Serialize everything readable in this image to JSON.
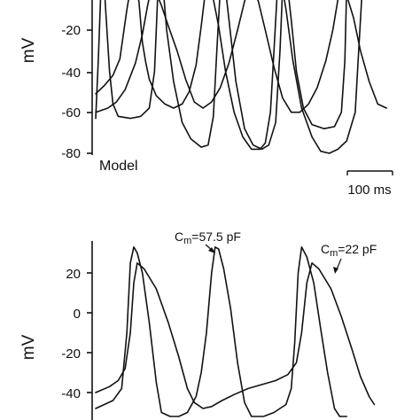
{
  "chart_data": [
    {
      "type": "line",
      "title": "",
      "panel_label": "Model",
      "xlabel": "",
      "ylabel": "mV",
      "ylim": [
        -85,
        0
      ],
      "xlim": [
        0,
        340
      ],
      "x_unit": "ms",
      "y_ticks": [
        -20,
        -40,
        -60,
        -80
      ],
      "y_tick_labels": [
        "-20",
        "-40",
        "-60",
        "-80"
      ],
      "scale_bar": {
        "value": 100,
        "unit": "ms",
        "label": "100 ms"
      },
      "series": [
        {
          "points": [
            [
              0,
              -63
            ],
            [
              3,
              -35
            ],
            [
              6,
              0
            ],
            [
              10,
              0
            ],
            [
              16,
              -40
            ],
            [
              20,
              -56
            ],
            [
              26,
              -62
            ],
            [
              40,
              -63
            ],
            [
              52,
              -62
            ],
            [
              62,
              -58
            ],
            [
              68,
              -40
            ],
            [
              72,
              0
            ],
            [
              78,
              0
            ],
            [
              82,
              -20
            ],
            [
              90,
              -45
            ],
            [
              100,
              -65
            ],
            [
              110,
              -73
            ],
            [
              122,
              -77
            ],
            [
              130,
              -76
            ],
            [
              136,
              -62
            ],
            [
              140,
              -30
            ],
            [
              144,
              0
            ],
            [
              150,
              0
            ],
            [
              154,
              -15
            ],
            [
              162,
              -45
            ],
            [
              172,
              -68
            ],
            [
              182,
              -76
            ],
            [
              192,
              -78
            ],
            [
              200,
              -76
            ],
            [
              208,
              -65
            ],
            [
              213,
              -30
            ],
            [
              216,
              0
            ],
            [
              222,
              0
            ],
            [
              226,
              -15
            ],
            [
              232,
              -40
            ],
            [
              240,
              -58
            ],
            [
              250,
              -66
            ],
            [
              264,
              -68
            ],
            [
              276,
              -67
            ],
            [
              284,
              -60
            ],
            [
              288,
              -35
            ],
            [
              290,
              0
            ]
          ]
        },
        {
          "points": [
            [
              0,
              -51
            ],
            [
              10,
              -47
            ],
            [
              20,
              -42
            ],
            [
              28,
              -34
            ],
            [
              36,
              -10
            ],
            [
              40,
              0
            ],
            [
              46,
              0
            ],
            [
              50,
              -6
            ],
            [
              54,
              -26
            ],
            [
              58,
              -36
            ],
            [
              62,
              -44
            ],
            [
              70,
              -52
            ],
            [
              80,
              -56
            ],
            [
              90,
              -58
            ],
            [
              100,
              -56
            ],
            [
              108,
              -50
            ],
            [
              116,
              -37
            ],
            [
              122,
              -18
            ],
            [
              126,
              -4
            ],
            [
              132,
              0
            ],
            [
              136,
              -5
            ],
            [
              142,
              -18
            ],
            [
              150,
              -40
            ],
            [
              160,
              -60
            ],
            [
              170,
              -72
            ],
            [
              180,
              -78
            ],
            [
              190,
              -78
            ],
            [
              196,
              -75
            ],
            [
              202,
              -60
            ],
            [
              206,
              -30
            ],
            [
              210,
              0
            ],
            [
              216,
              0
            ],
            [
              220,
              -10
            ],
            [
              228,
              -35
            ],
            [
              238,
              -58
            ],
            [
              250,
              -72
            ],
            [
              260,
              -79
            ],
            [
              270,
              -80
            ],
            [
              280,
              -78
            ],
            [
              290,
              -74
            ],
            [
              300,
              -60
            ],
            [
              304,
              -30
            ],
            [
              308,
              0
            ]
          ]
        },
        {
          "points": [
            [
              0,
              -60
            ],
            [
              14,
              -58
            ],
            [
              24,
              -55
            ],
            [
              34,
              -49
            ],
            [
              46,
              -36
            ],
            [
              54,
              -22
            ],
            [
              60,
              -8
            ],
            [
              64,
              0
            ],
            [
              70,
              -2
            ],
            [
              76,
              -8
            ],
            [
              84,
              -18
            ],
            [
              94,
              -30
            ],
            [
              104,
              -44
            ],
            [
              114,
              -55
            ],
            [
              124,
              -58
            ],
            [
              134,
              -55
            ],
            [
              144,
              -48
            ],
            [
              154,
              -36
            ],
            [
              164,
              -20
            ],
            [
              172,
              -6
            ],
            [
              176,
              0
            ],
            [
              182,
              0
            ],
            [
              188,
              -6
            ],
            [
              196,
              -20
            ],
            [
              206,
              -38
            ],
            [
              216,
              -53
            ],
            [
              226,
              -60
            ],
            [
              236,
              -60
            ],
            [
              246,
              -56
            ],
            [
              256,
              -48
            ],
            [
              266,
              -35
            ],
            [
              274,
              -20
            ],
            [
              280,
              -5
            ],
            [
              284,
              0
            ],
            [
              290,
              -3
            ],
            [
              298,
              -14
            ],
            [
              306,
              -30
            ],
            [
              316,
              -45
            ],
            [
              326,
              -56
            ],
            [
              336,
              -58
            ]
          ]
        }
      ]
    },
    {
      "type": "line",
      "title": "",
      "panel_label": "",
      "xlabel": "",
      "ylabel": "mV",
      "ylim": [
        -52,
        35
      ],
      "xlim": [
        0,
        340
      ],
      "x_unit": "ms",
      "y_ticks": [
        20,
        0,
        -20,
        -40
      ],
      "y_tick_labels": [
        "20",
        "0",
        "-20",
        "-40"
      ],
      "annotations": [
        {
          "text_main": "C",
          "text_sub": "m",
          "text_rest": "=57.5 pF"
        },
        {
          "text_main": "C",
          "text_sub": "m",
          "text_rest": "=22 pF"
        }
      ],
      "series": [
        {
          "name": "Cm=57.5 pF",
          "points": [
            [
              0,
              -48
            ],
            [
              20,
              -44
            ],
            [
              30,
              -38
            ],
            [
              36,
              -10
            ],
            [
              40,
              25
            ],
            [
              44,
              33
            ],
            [
              48,
              30
            ],
            [
              54,
              20
            ],
            [
              62,
              -5
            ],
            [
              70,
              -35
            ],
            [
              76,
              -50
            ],
            [
              86,
              -52
            ],
            [
              96,
              -52
            ],
            [
              106,
              -50
            ],
            [
              116,
              -42
            ],
            [
              122,
              -30
            ],
            [
              128,
              -10
            ],
            [
              134,
              20
            ],
            [
              138,
              33
            ],
            [
              142,
              32
            ],
            [
              148,
              22
            ],
            [
              156,
              2
            ],
            [
              164,
              -25
            ],
            [
              172,
              -45
            ],
            [
              180,
              -52
            ],
            [
              194,
              -52
            ],
            [
              206,
              -50
            ],
            [
              220,
              -46
            ],
            [
              226,
              -38
            ],
            [
              230,
              -15
            ],
            [
              234,
              20
            ],
            [
              238,
              33
            ],
            [
              244,
              28
            ],
            [
              252,
              15
            ],
            [
              260,
              -8
            ],
            [
              268,
              -30
            ],
            [
              276,
              -48
            ],
            [
              282,
              -52
            ],
            [
              290,
              -52
            ]
          ]
        },
        {
          "name": "Cm=22 pF",
          "points": [
            [
              0,
              -40
            ],
            [
              16,
              -37
            ],
            [
              26,
              -34
            ],
            [
              34,
              -28
            ],
            [
              40,
              -10
            ],
            [
              44,
              15
            ],
            [
              48,
              25
            ],
            [
              56,
              22
            ],
            [
              70,
              12
            ],
            [
              84,
              -5
            ],
            [
              96,
              -22
            ],
            [
              106,
              -38
            ],
            [
              114,
              -45
            ],
            [
              124,
              -48
            ],
            [
              134,
              -47
            ],
            [
              146,
              -44
            ],
            [
              160,
              -41
            ],
            [
              176,
              -38
            ],
            [
              192,
              -36
            ],
            [
              208,
              -34
            ],
            [
              222,
              -31
            ],
            [
              232,
              -25
            ],
            [
              238,
              -10
            ],
            [
              244,
              15
            ],
            [
              250,
              25
            ],
            [
              258,
              22
            ],
            [
              272,
              12
            ],
            [
              284,
              -2
            ],
            [
              296,
              -18
            ],
            [
              306,
              -32
            ],
            [
              316,
              -42
            ],
            [
              322,
              -46
            ]
          ]
        }
      ]
    }
  ]
}
